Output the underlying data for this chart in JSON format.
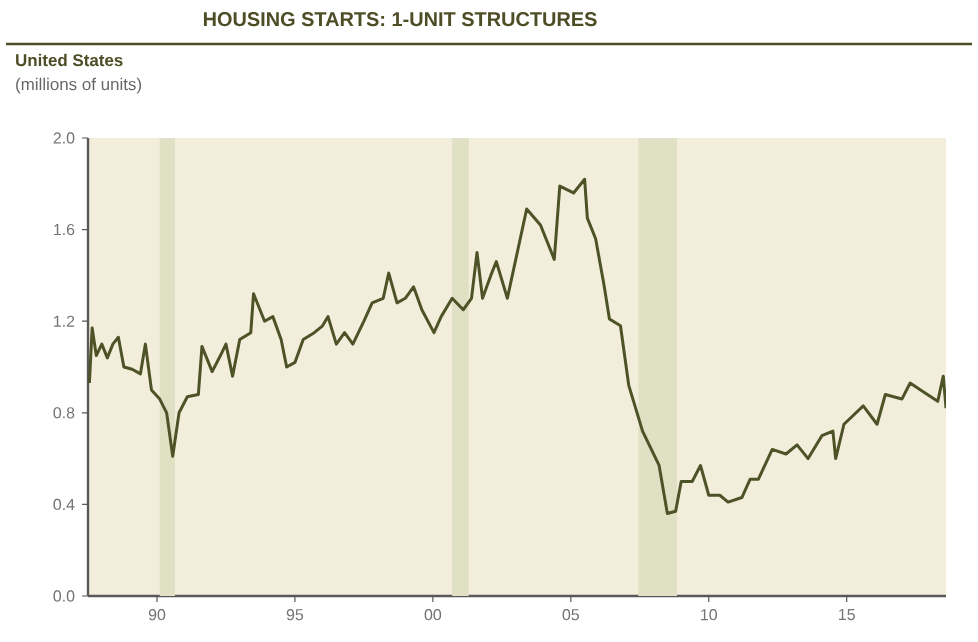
{
  "chart_data": {
    "type": "line",
    "title": "HOUSING STARTS: 1-UNIT STRUCTURES",
    "subtitle": "United States",
    "ylabel": "(millions of units)",
    "series": [
      {
        "color": "#4d5326",
        "x": [
          1987.55,
          1987.65,
          1987.8,
          1988.0,
          1988.2,
          1988.4,
          1988.6,
          1988.8,
          1989.1,
          1989.4,
          1989.58,
          1989.8,
          1990.1,
          1990.35,
          1990.57,
          1990.8,
          1991.1,
          1991.5,
          1991.63,
          1992.0,
          1992.3,
          1992.5,
          1992.74,
          1993.0,
          1993.4,
          1993.5,
          1993.9,
          1994.2,
          1994.5,
          1994.7,
          1995.0,
          1995.3,
          1995.7,
          1996.0,
          1996.2,
          1996.5,
          1996.8,
          1997.1,
          1997.5,
          1997.8,
          1998.2,
          1998.4,
          1998.7,
          1999.0,
          1999.3,
          1999.6,
          2000.04,
          2000.3,
          2000.7,
          2001.1,
          2001.4,
          2001.6,
          2001.8,
          2002.1,
          2002.3,
          2002.7,
          2003.4,
          2003.9,
          2004.4,
          2004.6,
          2005.1,
          2005.5,
          2005.6,
          2005.9,
          2006.2,
          2006.4,
          2006.8,
          2007.1,
          2007.6,
          2008.2,
          2008.5,
          2008.8,
          2009.0,
          2009.4,
          2009.7,
          2010.0,
          2010.4,
          2010.7,
          2011.2,
          2011.5,
          2011.8,
          2012.3,
          2012.8,
          2013.2,
          2013.6,
          2014.1,
          2014.5,
          2014.6,
          2014.9,
          2015.6,
          2016.1,
          2016.4,
          2017.0,
          2017.3,
          2017.8,
          2018.3,
          2018.5,
          2018.6
        ],
        "values": [
          0.93,
          1.17,
          1.05,
          1.1,
          1.04,
          1.1,
          1.13,
          1.0,
          0.99,
          0.97,
          1.1,
          0.9,
          0.86,
          0.8,
          0.61,
          0.8,
          0.87,
          0.88,
          1.09,
          0.98,
          1.05,
          1.1,
          0.96,
          1.12,
          1.15,
          1.32,
          1.2,
          1.22,
          1.12,
          1.0,
          1.02,
          1.12,
          1.15,
          1.18,
          1.22,
          1.1,
          1.15,
          1.1,
          1.2,
          1.28,
          1.3,
          1.41,
          1.28,
          1.3,
          1.35,
          1.25,
          1.15,
          1.22,
          1.3,
          1.25,
          1.3,
          1.5,
          1.3,
          1.4,
          1.46,
          1.3,
          1.69,
          1.62,
          1.47,
          1.79,
          1.76,
          1.82,
          1.65,
          1.56,
          1.36,
          1.21,
          1.18,
          0.92,
          0.72,
          0.57,
          0.36,
          0.37,
          0.5,
          0.5,
          0.57,
          0.44,
          0.44,
          0.41,
          0.43,
          0.51,
          0.51,
          0.64,
          0.62,
          0.66,
          0.6,
          0.7,
          0.72,
          0.6,
          0.75,
          0.83,
          0.75,
          0.88,
          0.86,
          0.93,
          0.89,
          0.85,
          0.96,
          0.82
        ]
      }
    ],
    "xlim": [
      1987.5,
      2018.6
    ],
    "ylim": [
      0,
      2
    ],
    "xticks": [
      {
        "value": 1990,
        "label": "90"
      },
      {
        "value": 1995,
        "label": "95"
      },
      {
        "value": 2000,
        "label": "00"
      },
      {
        "value": 2005,
        "label": "05"
      },
      {
        "value": 2010,
        "label": "10"
      },
      {
        "value": 2015,
        "label": "15"
      }
    ],
    "yticks": [
      {
        "value": 0,
        "label": "0.0"
      },
      0.4,
      0.8,
      1.2,
      1.6,
      {
        "value": 2,
        "label": "2.0"
      }
    ],
    "bands": [
      {
        "axis": "x",
        "from": 1990.1,
        "to": 1990.65,
        "color": "#dfe0c4"
      },
      {
        "axis": "x",
        "from": 2000.7,
        "to": 2001.3,
        "color": "#dfe0c4"
      },
      {
        "axis": "x",
        "from": 2007.45,
        "to": 2008.85,
        "color": "#dfe0c4"
      }
    ],
    "grid": false
  }
}
